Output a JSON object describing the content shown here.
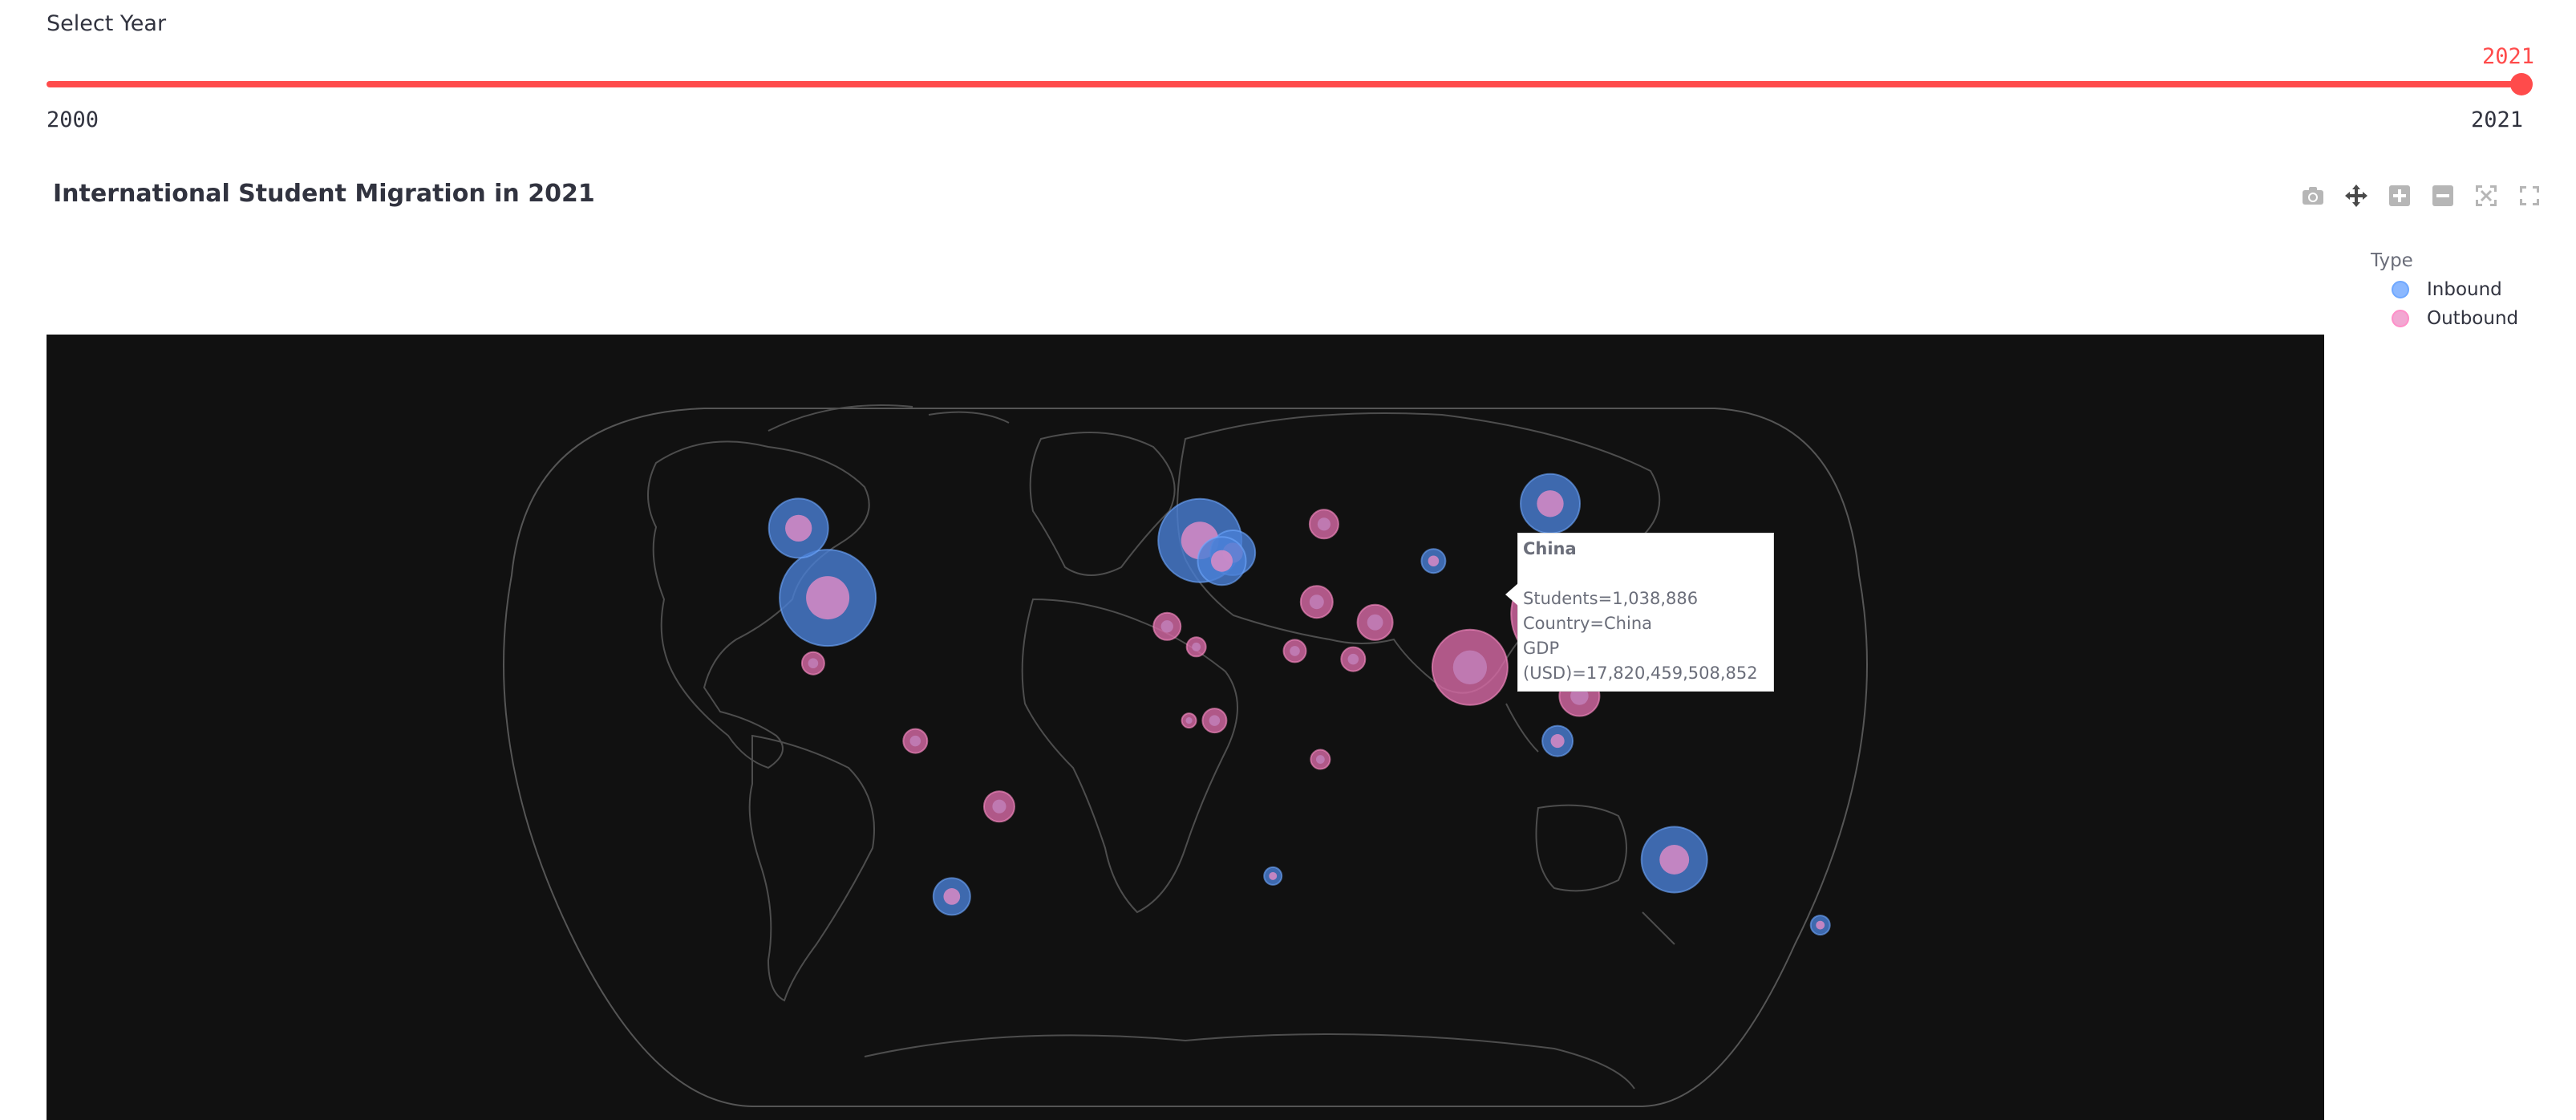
{
  "slider": {
    "label": "Select Year",
    "min": "2000",
    "max": "2021",
    "value": "2021",
    "value_fraction": 1.0
  },
  "chart": {
    "title": "International Student Migration in 2021"
  },
  "modebar": {
    "icons": [
      "camera-icon",
      "pan-icon",
      "zoom-in-icon",
      "zoom-out-icon",
      "autoscale-icon",
      "reset-icon"
    ]
  },
  "legend": {
    "title": "Type",
    "items": [
      {
        "label": "Inbound",
        "color": "#6fa8ff"
      },
      {
        "label": "Outbound",
        "color": "#ff8fc8"
      }
    ]
  },
  "tooltip": {
    "title": "China",
    "lines": [
      "Students=1,038,886",
      "Country=China",
      "GDP (USD)=17,820,459,508,852"
    ]
  },
  "colors": {
    "accent": "#ff4b4b",
    "map_background": "#111111",
    "inbound_fill": "#4a7fd6",
    "outbound_fill": "#d86aa6"
  },
  "chart_data": {
    "type": "scatter",
    "title": "International Student Migration in 2021",
    "projection": "natural earth",
    "legend_title": "Type",
    "series": [
      {
        "name": "Inbound",
        "points": [
          {
            "lon": -98,
            "lat": 39,
            "r": 60
          },
          {
            "lon": -106,
            "lat": 56,
            "r": 37
          },
          {
            "lon": 4,
            "lat": 53,
            "r": 52
          },
          {
            "lon": 13,
            "lat": 50,
            "r": 28
          },
          {
            "lon": 10,
            "lat": 48,
            "r": 30
          },
          {
            "lon": 100,
            "lat": 62,
            "r": 37
          },
          {
            "lon": 134,
            "lat": -25,
            "r": 41
          },
          {
            "lon": 102,
            "lat": 4,
            "r": 19
          },
          {
            "lon": -64,
            "lat": -34,
            "r": 23
          },
          {
            "lon": 68,
            "lat": 48,
            "r": 15
          },
          {
            "lon": 174,
            "lat": -41,
            "r": 12
          },
          {
            "lon": 24,
            "lat": -29,
            "r": 11
          }
        ]
      },
      {
        "name": "Outbound",
        "points": [
          {
            "lon": 104,
            "lat": 35,
            "r": 67
          },
          {
            "lon": 78,
            "lat": 22,
            "r": 47
          },
          {
            "lon": 108,
            "lat": 15,
            "r": 25
          },
          {
            "lon": 52,
            "lat": 33,
            "r": 22
          },
          {
            "lon": -51,
            "lat": -12,
            "r": 19
          },
          {
            "lon": -102,
            "lat": 23,
            "r": 14
          },
          {
            "lon": -74,
            "lat": 4,
            "r": 15
          },
          {
            "lon": 36,
            "lat": 38,
            "r": 20
          },
          {
            "lon": 8,
            "lat": 9,
            "r": 15
          },
          {
            "lon": -5,
            "lat": 32,
            "r": 17
          },
          {
            "lon": 46,
            "lat": 24,
            "r": 15
          },
          {
            "lon": 38,
            "lat": 57,
            "r": 18
          },
          {
            "lon": 37,
            "lat": -0.5,
            "r": 12
          },
          {
            "lon": 3,
            "lat": 27,
            "r": 12
          },
          {
            "lon": 1,
            "lat": 9,
            "r": 9
          },
          {
            "lon": 30,
            "lat": 26,
            "r": 14
          }
        ]
      }
    ]
  }
}
